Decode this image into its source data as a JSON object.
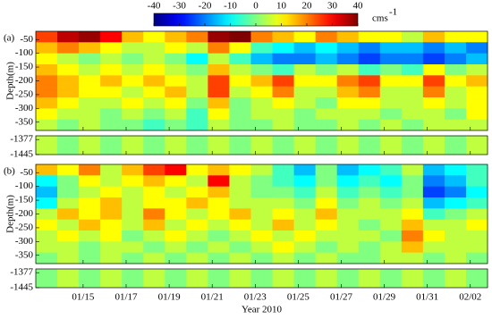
{
  "chart_data": {
    "type": "heatmap",
    "colormap": "jet",
    "xlabel": "Year 2010",
    "xlim": [
      12.8,
      33.8
    ],
    "xticks": [
      {
        "value": 15,
        "label": "01/15"
      },
      {
        "value": 17,
        "label": "01/17"
      },
      {
        "value": 19,
        "label": "01/19"
      },
      {
        "value": 21,
        "label": "01/21"
      },
      {
        "value": 23,
        "label": "01/23"
      },
      {
        "value": 25,
        "label": "01/25"
      },
      {
        "value": 27,
        "label": "01/27"
      },
      {
        "value": 29,
        "label": "01/29"
      },
      {
        "value": 31,
        "label": "01/31"
      },
      {
        "value": 33,
        "label": "02/02"
      }
    ],
    "x_bins": [
      12.8,
      13.8,
      14.8,
      15.8,
      16.8,
      17.8,
      18.8,
      19.8,
      20.8,
      21.8,
      22.8,
      23.8,
      24.8,
      25.8,
      26.8,
      27.8,
      28.8,
      29.8,
      30.8,
      31.8,
      32.8,
      33.8
    ],
    "colorbar": {
      "lim": [
        -40,
        40
      ],
      "ticks": [
        -40,
        -30,
        -20,
        -10,
        0,
        10,
        20,
        30,
        40
      ],
      "unit": "cms",
      "unit_exponent": "-1"
    },
    "panels": [
      {
        "label": "(a)",
        "ylabel": "Depth(m)",
        "ylim": [
          -20,
          -380
        ],
        "yticks": [
          -50,
          -100,
          -150,
          -200,
          -250,
          -300,
          -350
        ],
        "deep_ylim": [
          -1360,
          -1445
        ],
        "deep_yticks": [
          -1377,
          -1445
        ],
        "depth_bins": [
          -20,
          -60,
          -100,
          -140,
          -180,
          -220,
          -260,
          -300,
          -340,
          -380
        ],
        "deep_bins": [
          -1360,
          -1445
        ],
        "values": [
          [
            25,
            35,
            38,
            30,
            15,
            10,
            15,
            20,
            38,
            40,
            20,
            15,
            10,
            20,
            15,
            10,
            10,
            5,
            15,
            10,
            10
          ],
          [
            15,
            20,
            15,
            10,
            5,
            5,
            10,
            5,
            20,
            10,
            -5,
            -10,
            -15,
            -10,
            -15,
            -20,
            -15,
            -15,
            -20,
            -15,
            -20
          ],
          [
            10,
            5,
            0,
            5,
            0,
            5,
            0,
            -10,
            5,
            -5,
            -15,
            -20,
            -20,
            -15,
            -20,
            -25,
            -20,
            -20,
            -25,
            -20,
            -15
          ],
          [
            15,
            10,
            5,
            10,
            5,
            10,
            5,
            0,
            15,
            5,
            0,
            -5,
            5,
            0,
            5,
            -5,
            0,
            -5,
            10,
            0,
            5
          ],
          [
            20,
            15,
            10,
            15,
            10,
            15,
            10,
            5,
            25,
            10,
            15,
            25,
            10,
            10,
            20,
            25,
            10,
            10,
            25,
            10,
            15
          ],
          [
            20,
            15,
            10,
            10,
            5,
            10,
            15,
            5,
            25,
            5,
            10,
            20,
            5,
            5,
            15,
            20,
            5,
            5,
            20,
            5,
            10
          ],
          [
            15,
            10,
            5,
            5,
            10,
            5,
            10,
            0,
            15,
            0,
            5,
            10,
            5,
            0,
            10,
            10,
            5,
            5,
            10,
            5,
            10
          ],
          [
            10,
            5,
            5,
            0,
            5,
            0,
            5,
            -5,
            10,
            0,
            5,
            5,
            0,
            5,
            5,
            5,
            0,
            5,
            5,
            0,
            10
          ],
          [
            5,
            0,
            5,
            0,
            0,
            -5,
            0,
            -5,
            5,
            0,
            0,
            5,
            0,
            0,
            5,
            0,
            5,
            0,
            5,
            5,
            5
          ]
        ],
        "deep_values": [
          5,
          0,
          5,
          0,
          5,
          0,
          5,
          0,
          5,
          0,
          5,
          0,
          5,
          0,
          5,
          0,
          5,
          0,
          5,
          0,
          5
        ]
      },
      {
        "label": "(b)",
        "ylabel": "Depth(m)",
        "ylim": [
          -20,
          -380
        ],
        "yticks": [
          -50,
          -100,
          -150,
          -200,
          -250,
          -300,
          -350
        ],
        "deep_ylim": [
          -1360,
          -1445
        ],
        "deep_yticks": [
          -1377,
          -1445
        ],
        "depth_bins": [
          -20,
          -60,
          -100,
          -140,
          -180,
          -220,
          -260,
          -300,
          -340,
          -380
        ],
        "deep_bins": [
          -1360,
          -1445
        ],
        "values": [
          [
            15,
            10,
            20,
            5,
            15,
            25,
            30,
            10,
            15,
            10,
            5,
            -5,
            -15,
            0,
            -15,
            -10,
            -5,
            5,
            -15,
            -10,
            -5
          ],
          [
            -10,
            0,
            10,
            5,
            10,
            15,
            10,
            5,
            30,
            5,
            0,
            -5,
            -10,
            0,
            -10,
            -5,
            -10,
            0,
            -20,
            -15,
            -5
          ],
          [
            -15,
            0,
            5,
            10,
            5,
            10,
            5,
            10,
            15,
            5,
            0,
            0,
            -5,
            5,
            -5,
            0,
            -5,
            0,
            -25,
            -20,
            -10
          ],
          [
            -10,
            5,
            10,
            15,
            5,
            10,
            10,
            15,
            10,
            5,
            5,
            5,
            0,
            10,
            0,
            5,
            0,
            5,
            -15,
            -10,
            -5
          ],
          [
            5,
            15,
            10,
            15,
            5,
            20,
            10,
            5,
            10,
            15,
            5,
            10,
            5,
            15,
            5,
            5,
            5,
            10,
            -5,
            0,
            5
          ],
          [
            10,
            5,
            15,
            10,
            5,
            15,
            5,
            10,
            5,
            10,
            5,
            15,
            5,
            10,
            5,
            0,
            5,
            15,
            5,
            5,
            10
          ],
          [
            5,
            10,
            5,
            10,
            0,
            5,
            10,
            5,
            0,
            5,
            10,
            5,
            10,
            5,
            5,
            5,
            0,
            20,
            10,
            5,
            5
          ],
          [
            5,
            5,
            0,
            5,
            5,
            0,
            5,
            0,
            5,
            0,
            5,
            10,
            5,
            0,
            5,
            0,
            5,
            15,
            5,
            5,
            5
          ],
          [
            0,
            5,
            0,
            5,
            0,
            5,
            0,
            5,
            0,
            5,
            0,
            5,
            0,
            5,
            0,
            0,
            5,
            5,
            0,
            5,
            0
          ]
        ],
        "deep_values": [
          0,
          5,
          0,
          5,
          0,
          5,
          0,
          5,
          0,
          5,
          0,
          5,
          0,
          5,
          0,
          5,
          0,
          5,
          0,
          5,
          0
        ]
      }
    ]
  }
}
